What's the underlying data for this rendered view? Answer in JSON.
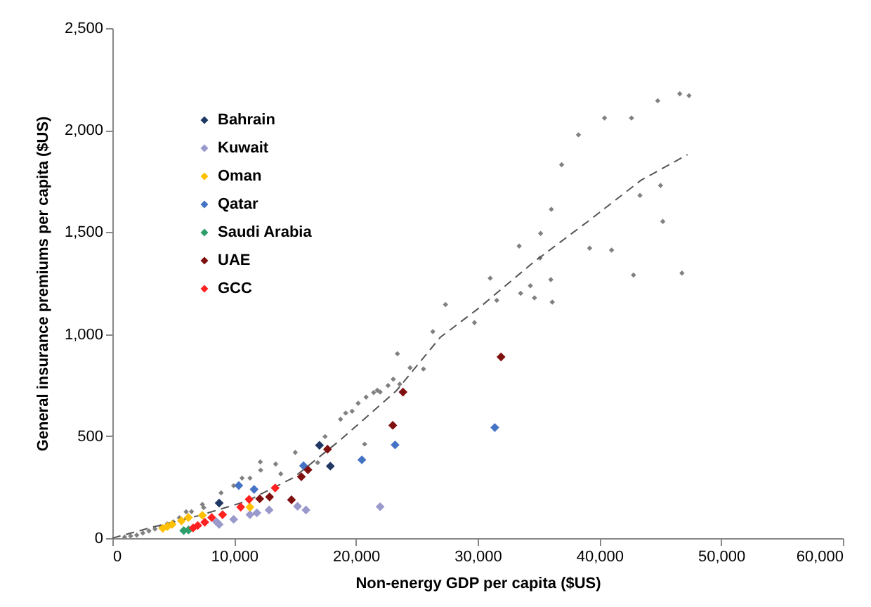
{
  "chart_data": {
    "type": "scatter",
    "xlabel": "Non-energy GDP per capita ($US)",
    "ylabel": "General insurance premiums per capita ($US)",
    "xlim": [
      0,
      60000
    ],
    "xticks": [
      0,
      {
        "value": 10000,
        "label": "10,000"
      },
      {
        "value": 20000,
        "label": "20,000"
      },
      {
        "value": 30000,
        "label": "30,000"
      },
      {
        "value": 40000,
        "label": "40,000"
      },
      {
        "value": 50000,
        "label": "50,000"
      },
      {
        "value": 60000,
        "label": "60,000"
      }
    ],
    "ylim": [
      0,
      2500
    ],
    "yticks": [
      0,
      500,
      {
        "value": 1000,
        "label": "1,000"
      },
      {
        "value": 1500,
        "label": "1,500"
      },
      {
        "value": 2000,
        "label": "2,000"
      },
      {
        "value": 2500,
        "label": "2,500"
      }
    ],
    "grid": false,
    "legend": "top left",
    "marker": "diamond",
    "series": [
      {
        "color": "#808080",
        "x": [
          46600,
          47360,
          44790,
          40420,
          42640,
          38280,
          36900,
          45020,
          43330,
          36050,
          45210,
          35170,
          33410,
          39200,
          41000,
          35130,
          31030,
          36010,
          42800,
          46780,
          34330,
          33530,
          34670,
          36130,
          31570,
          27360,
          29740,
          26320,
          23410,
          24450,
          25550,
          23600,
          23070,
          21760,
          21460,
          20840,
          20190,
          19690,
          19160,
          18740,
          22640,
          21990,
          17470,
          20720,
          15020,
          16860,
          13410,
          13830,
          12150,
          12180,
          10650,
          11300,
          9960,
          8930,
          7390,
          6060,
          1000,
          1500,
          2000,
          2500,
          3000,
          3500,
          4000,
          4500,
          5000,
          5500,
          6500,
          7500
        ],
        "values": [
          2178,
          2169,
          2144,
          2059,
          2059,
          1977,
          1830,
          1729,
          1680,
          1612,
          1552,
          1494,
          1432,
          1421,
          1412,
          1373,
          1274,
          1267,
          1290,
          1299,
          1237,
          1200,
          1178,
          1157,
          1166,
          1145,
          1056,
          1012,
          904,
          835,
          829,
          755,
          779,
          725,
          714,
          691,
          661,
          622,
          613,
          583,
          748,
          716,
          498,
          461,
          420,
          370,
          363,
          315,
          374,
          333,
          294,
          294,
          257,
          222,
          165,
          129,
          5,
          10,
          15,
          25,
          35,
          45,
          55,
          70,
          80,
          100,
          130,
          150
        ]
      },
      {
        "type": "line",
        "color": "#555555",
        "line_style": "dashed",
        "marker": "none",
        "x": [
          0,
          3370,
          7200,
          11030,
          14860,
          18700,
          23300,
          26940,
          30000,
          34600,
          39200,
          43410,
          47240
        ],
        "values": [
          0,
          55,
          112,
          181,
          296,
          480,
          721,
          985,
          1123,
          1353,
          1559,
          1754,
          1880
        ]
      },
      {
        "name": "Bahrain",
        "color": "#1f3864",
        "x": [
          17010,
          17900,
          8770
        ],
        "values": [
          455,
          353,
          172
        ]
      },
      {
        "name": "Kuwait",
        "color": "#9999cc",
        "x": [
          21990,
          15900,
          15210,
          12870,
          11870,
          11300,
          9960,
          8770,
          8560
        ],
        "values": [
          154,
          138,
          156,
          138,
          124,
          115,
          92,
          67,
          80
        ]
      },
      {
        "name": "Oman",
        "color": "#ffc000",
        "x": [
          11300,
          4140,
          4900,
          5670,
          6240,
          7390,
          4520
        ],
        "values": [
          152,
          48,
          67,
          85,
          101,
          112,
          57
        ]
      },
      {
        "name": "Qatar",
        "color": "#4472c4",
        "x": [
          20490,
          23220,
          31410,
          10380,
          11640,
          15700
        ],
        "values": [
          384,
          457,
          542,
          258,
          239,
          355
        ]
      },
      {
        "name": "Saudi Arabia",
        "color": "#2e9e6b",
        "x": [
          5860,
          6250
        ],
        "values": [
          37,
          40
        ]
      },
      {
        "name": "UAE",
        "color": "#7f1010",
        "x": [
          23870,
          23030,
          31920,
          17670,
          16060,
          15520,
          14710,
          12910,
          12100
        ],
        "values": [
          716,
          553,
          888,
          436,
          335,
          301,
          188,
          202,
          193
        ]
      },
      {
        "name": "GCC",
        "color": "#ff2020",
        "x": [
          13370,
          11230,
          10540,
          9050,
          8160,
          7590,
          7010,
          6630
        ],
        "values": [
          246,
          190,
          152,
          115,
          101,
          78,
          62,
          50
        ]
      }
    ]
  }
}
